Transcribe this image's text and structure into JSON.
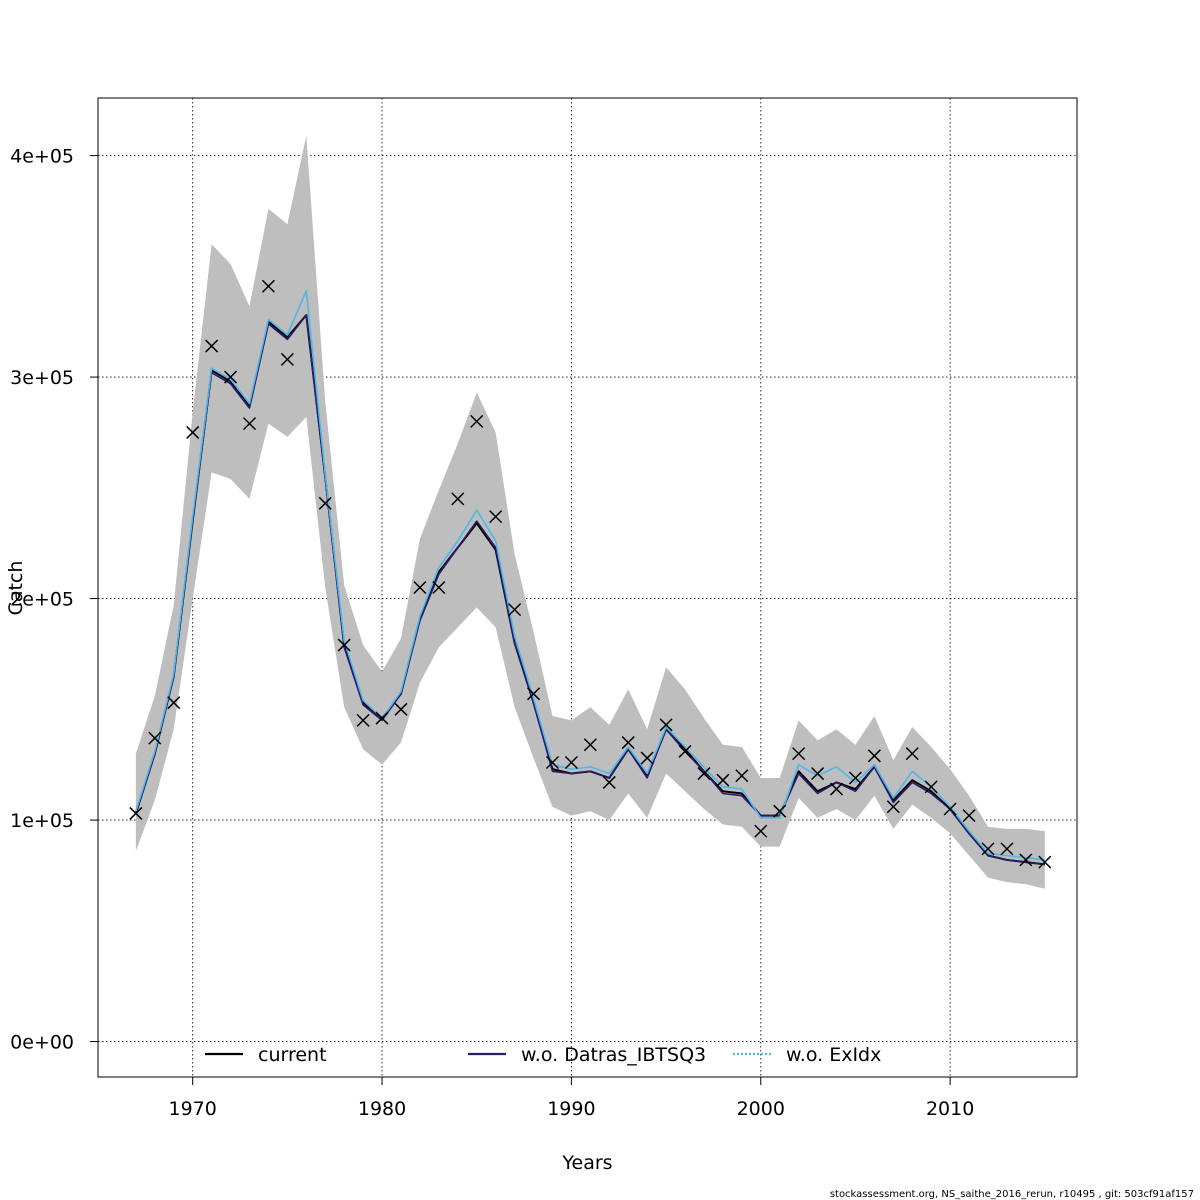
{
  "chart_data": {
    "type": "line",
    "title": "",
    "xlabel": "Years",
    "ylabel": "Catch",
    "xlim": [
      1965,
      2016.7
    ],
    "ylim": [
      -16000,
      426000
    ],
    "x_ticks": [
      1970,
      1980,
      1990,
      2000,
      2010
    ],
    "x_tick_labels": [
      "1970",
      "1980",
      "1990",
      "2000",
      "2010"
    ],
    "y_ticks": [
      0,
      100000,
      200000,
      300000,
      400000
    ],
    "y_tick_labels": [
      "0e+00",
      "1e+05",
      "2e+05",
      "3e+05",
      "4e+05"
    ],
    "grid": true,
    "legend_position": "bottom",
    "years": [
      1967,
      1968,
      1969,
      1970,
      1971,
      1972,
      1973,
      1974,
      1975,
      1976,
      1977,
      1978,
      1979,
      1980,
      1981,
      1982,
      1983,
      1984,
      1985,
      1986,
      1987,
      1988,
      1989,
      1990,
      1991,
      1992,
      1993,
      1994,
      1995,
      1996,
      1997,
      1998,
      1999,
      2000,
      2001,
      2002,
      2003,
      2004,
      2005,
      2006,
      2007,
      2008,
      2009,
      2010,
      2011,
      2012,
      2013,
      2014,
      2015
    ],
    "confidence_band": {
      "color": "#bebebe",
      "lower": [
        86000,
        109000,
        141000,
        200000,
        257000,
        254000,
        245000,
        279000,
        273000,
        282000,
        205000,
        151000,
        132000,
        125000,
        135000,
        162000,
        178000,
        187000,
        196000,
        187000,
        151000,
        128000,
        106000,
        102000,
        104000,
        100000,
        112000,
        101000,
        121000,
        113000,
        105000,
        98000,
        97000,
        88000,
        88000,
        110000,
        101000,
        105000,
        100000,
        111000,
        96000,
        107000,
        101000,
        94000,
        84000,
        74000,
        72000,
        71000,
        69000
      ],
      "upper": [
        130000,
        156000,
        197000,
        284000,
        360000,
        351000,
        332000,
        376000,
        369000,
        409000,
        289000,
        206000,
        179000,
        167000,
        182000,
        227000,
        249000,
        270000,
        293000,
        275000,
        220000,
        185000,
        147000,
        145000,
        151000,
        143000,
        159000,
        141000,
        169000,
        159000,
        146000,
        134000,
        133000,
        119000,
        119000,
        145000,
        136000,
        141000,
        134000,
        147000,
        127000,
        142000,
        133000,
        123000,
        111000,
        97000,
        96000,
        96000,
        95000
      ]
    },
    "observed": {
      "marker": "x",
      "values": [
        103000,
        137000,
        153000,
        275000,
        314000,
        300000,
        279000,
        341000,
        308000,
        null,
        243000,
        179000,
        145000,
        146000,
        150000,
        205000,
        205000,
        245000,
        280000,
        237000,
        195000,
        157000,
        126000,
        126000,
        134000,
        117000,
        135000,
        128000,
        143000,
        131000,
        121000,
        118000,
        120000,
        95000,
        104000,
        130000,
        121000,
        114000,
        119000,
        129000,
        106000,
        130000,
        115000,
        105000,
        102000,
        87000,
        87000,
        82000,
        81000
      ]
    },
    "series": [
      {
        "name": "current",
        "color": "#000000",
        "dash": "solid",
        "values": [
          103000,
          130000,
          165000,
          235000,
          303000,
          298000,
          287000,
          325000,
          318000,
          328000,
          255000,
          179000,
          153000,
          146000,
          157000,
          191000,
          212000,
          223000,
          234000,
          222000,
          180000,
          153000,
          123000,
          121000,
          122000,
          119000,
          132000,
          120000,
          141000,
          132000,
          122000,
          113000,
          112000,
          102000,
          102000,
          122000,
          113000,
          117000,
          114000,
          124000,
          109000,
          118000,
          113000,
          105000,
          94000,
          84000,
          82000,
          81000,
          80000
        ]
      },
      {
        "name": "w.o. Datras_IBTSQ3",
        "color": "#2a1b6b",
        "dash": "solid",
        "values": [
          103000,
          130000,
          165000,
          235000,
          302000,
          297000,
          286000,
          324000,
          317000,
          328000,
          254000,
          178000,
          152000,
          145000,
          157000,
          190000,
          211000,
          223000,
          235000,
          223000,
          180000,
          153000,
          122000,
          121000,
          122000,
          119000,
          132000,
          119000,
          141000,
          131000,
          122000,
          112000,
          111000,
          102000,
          102000,
          121000,
          112000,
          117000,
          113000,
          124000,
          108000,
          117000,
          112000,
          105000,
          94000,
          84000,
          82000,
          81000,
          80000
        ]
      },
      {
        "name": "w.o. ExIdx",
        "color": "#4db8e8",
        "dash": "dotted",
        "values": [
          104000,
          131000,
          166000,
          237000,
          304000,
          299000,
          288000,
          326000,
          319000,
          339000,
          256000,
          181000,
          154000,
          146000,
          158000,
          192000,
          214000,
          226000,
          240000,
          226000,
          183000,
          155000,
          125000,
          123000,
          124000,
          121000,
          133000,
          121000,
          142000,
          133000,
          124000,
          115000,
          114000,
          101000,
          101000,
          125000,
          120000,
          124000,
          117000,
          125000,
          110000,
          122000,
          115000,
          106000,
          95000,
          85000,
          84000,
          83000,
          82000
        ]
      }
    ]
  },
  "footer": "stockassessment.org, NS_saithe_2016_rerun, r10495 , git: 503cf91af157"
}
